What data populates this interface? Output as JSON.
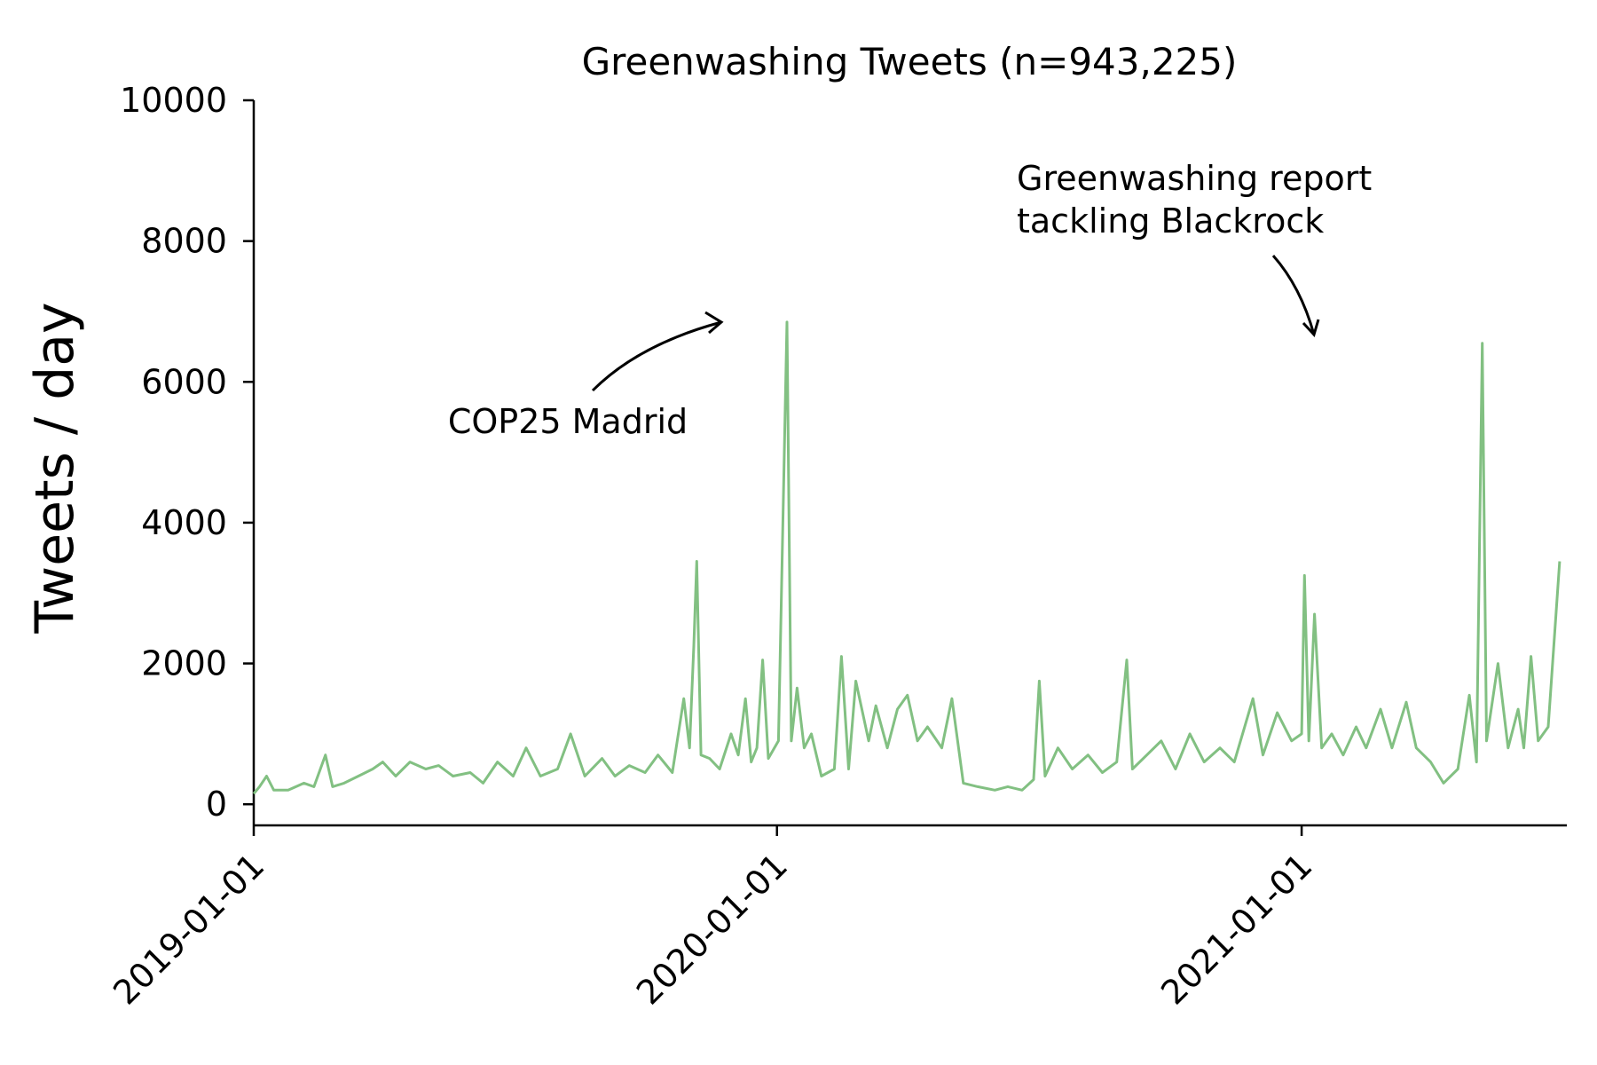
{
  "chart_data": {
    "type": "line",
    "title": "Greenwashing Tweets (n=943,225)",
    "xlabel": "",
    "ylabel": "Tweets / day",
    "ylim": [
      -300,
      10000
    ],
    "xlim": [
      "2019-01-01",
      "2021-07-05"
    ],
    "yticks": [
      0,
      2000,
      4000,
      6000,
      8000,
      10000
    ],
    "ytick_labels": [
      "0",
      "2000",
      "4000",
      "6000",
      "8000",
      "10000"
    ],
    "xticks": [
      "2019-01-01",
      "2020-01-01",
      "2021-01-01"
    ],
    "xtick_labels": [
      "2019-01-01",
      "2020-01-01",
      "2021-01-01"
    ],
    "grid": false,
    "series": [
      {
        "color": "#82c082",
        "points": [
          [
            "2019-01-01",
            150
          ],
          [
            "2019-01-05",
            250
          ],
          [
            "2019-01-10",
            400
          ],
          [
            "2019-01-15",
            200
          ],
          [
            "2019-01-25",
            200
          ],
          [
            "2019-02-05",
            300
          ],
          [
            "2019-02-12",
            250
          ],
          [
            "2019-02-20",
            700
          ],
          [
            "2019-02-25",
            250
          ],
          [
            "2019-03-05",
            300
          ],
          [
            "2019-03-15",
            400
          ],
          [
            "2019-03-25",
            500
          ],
          [
            "2019-04-01",
            600
          ],
          [
            "2019-04-10",
            400
          ],
          [
            "2019-04-20",
            600
          ],
          [
            "2019-05-01",
            500
          ],
          [
            "2019-05-10",
            550
          ],
          [
            "2019-05-20",
            400
          ],
          [
            "2019-06-01",
            450
          ],
          [
            "2019-06-10",
            300
          ],
          [
            "2019-06-20",
            600
          ],
          [
            "2019-07-01",
            400
          ],
          [
            "2019-07-10",
            800
          ],
          [
            "2019-07-20",
            400
          ],
          [
            "2019-08-01",
            500
          ],
          [
            "2019-08-10",
            1000
          ],
          [
            "2019-08-20",
            400
          ],
          [
            "2019-09-01",
            650
          ],
          [
            "2019-09-10",
            400
          ],
          [
            "2019-09-20",
            550
          ],
          [
            "2019-10-01",
            450
          ],
          [
            "2019-10-10",
            700
          ],
          [
            "2019-10-20",
            450
          ],
          [
            "2019-10-28",
            1500
          ],
          [
            "2019-11-01",
            800
          ],
          [
            "2019-11-04",
            2250
          ],
          [
            "2019-11-06",
            3450
          ],
          [
            "2019-11-09",
            700
          ],
          [
            "2019-11-15",
            650
          ],
          [
            "2019-11-22",
            500
          ],
          [
            "2019-11-30",
            1000
          ],
          [
            "2019-12-05",
            700
          ],
          [
            "2019-12-10",
            1500
          ],
          [
            "2019-12-14",
            600
          ],
          [
            "2019-12-18",
            800
          ],
          [
            "2019-12-22",
            2050
          ],
          [
            "2019-12-26",
            650
          ],
          [
            "2020-01-02",
            900
          ],
          [
            "2020-01-08",
            6850
          ],
          [
            "2020-01-11",
            900
          ],
          [
            "2020-01-15",
            1650
          ],
          [
            "2020-01-20",
            800
          ],
          [
            "2020-01-25",
            1000
          ],
          [
            "2020-02-01",
            400
          ],
          [
            "2020-02-10",
            500
          ],
          [
            "2020-02-15",
            2100
          ],
          [
            "2020-02-20",
            500
          ],
          [
            "2020-02-25",
            1750
          ],
          [
            "2020-03-05",
            900
          ],
          [
            "2020-03-10",
            1400
          ],
          [
            "2020-03-18",
            800
          ],
          [
            "2020-03-25",
            1350
          ],
          [
            "2020-04-01",
            1550
          ],
          [
            "2020-04-08",
            900
          ],
          [
            "2020-04-15",
            1100
          ],
          [
            "2020-04-25",
            800
          ],
          [
            "2020-05-02",
            1500
          ],
          [
            "2020-05-10",
            300
          ],
          [
            "2020-05-20",
            250
          ],
          [
            "2020-06-01",
            200
          ],
          [
            "2020-06-10",
            250
          ],
          [
            "2020-06-20",
            200
          ],
          [
            "2020-06-28",
            350
          ],
          [
            "2020-07-02",
            1750
          ],
          [
            "2020-07-06",
            400
          ],
          [
            "2020-07-15",
            800
          ],
          [
            "2020-07-25",
            500
          ],
          [
            "2020-08-05",
            700
          ],
          [
            "2020-08-15",
            450
          ],
          [
            "2020-08-25",
            600
          ],
          [
            "2020-09-01",
            2050
          ],
          [
            "2020-09-05",
            500
          ],
          [
            "2020-09-15",
            700
          ],
          [
            "2020-09-25",
            900
          ],
          [
            "2020-10-05",
            500
          ],
          [
            "2020-10-15",
            1000
          ],
          [
            "2020-10-25",
            600
          ],
          [
            "2020-11-05",
            800
          ],
          [
            "2020-11-15",
            600
          ],
          [
            "2020-11-28",
            1500
          ],
          [
            "2020-12-05",
            700
          ],
          [
            "2020-12-15",
            1300
          ],
          [
            "2020-12-25",
            900
          ],
          [
            "2021-01-01",
            1000
          ],
          [
            "2021-01-03",
            3250
          ],
          [
            "2021-01-06",
            900
          ],
          [
            "2021-01-10",
            2700
          ],
          [
            "2021-01-15",
            800
          ],
          [
            "2021-01-22",
            1000
          ],
          [
            "2021-01-30",
            700
          ],
          [
            "2021-02-08",
            1100
          ],
          [
            "2021-02-15",
            800
          ],
          [
            "2021-02-25",
            1350
          ],
          [
            "2021-03-05",
            800
          ],
          [
            "2021-03-15",
            1450
          ],
          [
            "2021-03-22",
            800
          ],
          [
            "2021-04-01",
            600
          ],
          [
            "2021-04-10",
            300
          ],
          [
            "2021-04-20",
            500
          ],
          [
            "2021-04-28",
            1550
          ],
          [
            "2021-05-03",
            600
          ],
          [
            "2021-05-07",
            6550
          ],
          [
            "2021-05-10",
            900
          ],
          [
            "2021-05-18",
            2000
          ],
          [
            "2021-05-25",
            800
          ],
          [
            "2021-06-01",
            1350
          ],
          [
            "2021-06-05",
            800
          ],
          [
            "2021-06-10",
            2100
          ],
          [
            "2021-06-15",
            900
          ],
          [
            "2021-06-22",
            1100
          ],
          [
            "2021-06-30",
            3450
          ]
        ]
      }
    ],
    "annotations": [
      {
        "text": "COP25 Madrid",
        "target": [
          "2020-01-08",
          6850
        ]
      },
      {
        "text_lines": [
          "Greenwashing report",
          "tackling Blackrock"
        ],
        "target": [
          "2021-05-07",
          6550
        ]
      }
    ]
  }
}
